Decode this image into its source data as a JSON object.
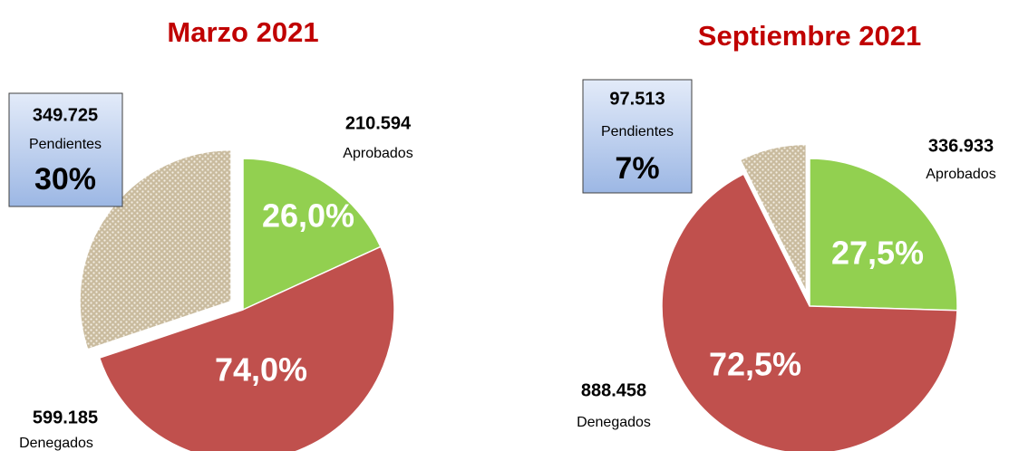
{
  "chart_data": [
    {
      "type": "pie",
      "title": "Marzo 2021",
      "categories": [
        "Aprobados",
        "Denegados",
        "Pendientes"
      ],
      "values": [
        210594,
        599185,
        349725
      ],
      "value_labels": [
        "210.594",
        "599.185",
        "349.725"
      ],
      "colors": [
        "#92d050",
        "#c0504d",
        "#c9bb9e"
      ],
      "exploded": [
        false,
        false,
        true
      ],
      "share_labels": [
        {
          "value": 26.0,
          "label": "26,0%"
        },
        {
          "value": 74.0,
          "label": "74,0%"
        }
      ],
      "pending_share": {
        "value": 30,
        "label": "30%"
      }
    },
    {
      "type": "pie",
      "title": "Septiembre 2021",
      "categories": [
        "Aprobados",
        "Denegados",
        "Pendientes"
      ],
      "values": [
        336933,
        888458,
        97513
      ],
      "value_labels": [
        "336.933",
        "888.458",
        "97.513"
      ],
      "colors": [
        "#92d050",
        "#c0504d",
        "#c9bb9e"
      ],
      "exploded": [
        false,
        false,
        true
      ],
      "share_labels": [
        {
          "value": 27.5,
          "label": "27,5%"
        },
        {
          "value": 72.5,
          "label": "72,5%"
        }
      ],
      "pending_share": {
        "value": 7,
        "label": "7%"
      }
    }
  ]
}
